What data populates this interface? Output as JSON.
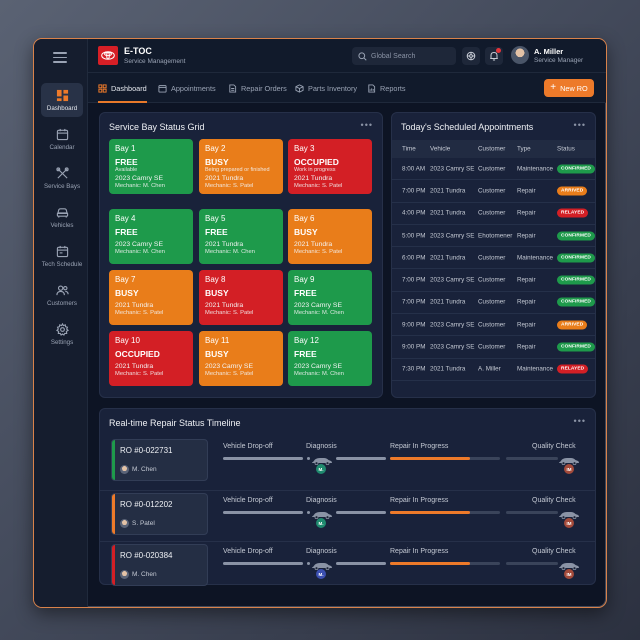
{
  "app": {
    "title": "E-TOC",
    "subtitle": "Service Management"
  },
  "header": {
    "search_placeholder": "Global Search",
    "notification_count": "",
    "user": {
      "name": "A. Miller",
      "role": "Service Manager"
    }
  },
  "sidebar": {
    "items": [
      {
        "label": "Dashboard",
        "icon": "dashboard-icon",
        "active": true
      },
      {
        "label": "Calendar",
        "icon": "calendar-icon"
      },
      {
        "label": "Service Bays",
        "icon": "tools-icon"
      },
      {
        "label": "Vehicles",
        "icon": "car-icon"
      },
      {
        "label": "Tech Schedule",
        "icon": "schedule-icon"
      },
      {
        "label": "Customers",
        "icon": "users-icon"
      },
      {
        "label": "Settings",
        "icon": "gear-icon"
      }
    ]
  },
  "tabs": [
    {
      "label": "Dashboard",
      "icon": "dashboard-icon",
      "active": true
    },
    {
      "label": "Appointments",
      "icon": "calendar-icon"
    },
    {
      "label": "Repair Orders",
      "icon": "document-icon"
    },
    {
      "label": "Parts Inventory",
      "icon": "parts-icon"
    },
    {
      "label": "Reports",
      "icon": "report-icon"
    }
  ],
  "new_ro_label": "New RO",
  "colors": {
    "accent": "#ed7a2a",
    "free": "#1e9a4b",
    "busy": "#e97d1a",
    "occupied": "#d31f25"
  },
  "bay_grid": {
    "title": "Service Bay Status Grid",
    "bays": [
      {
        "name": "Bay 1",
        "status": "FREE",
        "sub": "Available",
        "vehicle": "2023 Camry SE",
        "mechanic": "Mechanic: M. Chen",
        "color": "free"
      },
      {
        "name": "Bay 2",
        "status": "BUSY",
        "sub": "Being prepared or finished",
        "vehicle": "2021 Tundra",
        "mechanic": "Mechanic: S. Patel",
        "color": "busy"
      },
      {
        "name": "Bay 3",
        "status": "OCCUPIED",
        "sub": "Work in progress",
        "vehicle": "2021 Tundra",
        "mechanic": "Mechanic: S. Patel",
        "color": "occupied"
      },
      {
        "name": "Bay 4",
        "status": "FREE",
        "sub": "",
        "vehicle": "2023 Camry SE",
        "mechanic": "Mechanic: M. Chen",
        "color": "free"
      },
      {
        "name": "Bay 5",
        "status": "FREE",
        "sub": "",
        "vehicle": "2021 Tundra",
        "mechanic": "Mechanic: M. Chen",
        "color": "free"
      },
      {
        "name": "Bay 6",
        "status": "BUSY",
        "sub": "",
        "vehicle": "2021 Tundra",
        "mechanic": "Mechanic: S. Patel",
        "color": "busy"
      },
      {
        "name": "Bay 7",
        "status": "BUSY",
        "sub": "",
        "vehicle": "2021 Tundra",
        "mechanic": "Mechanic: S. Patel",
        "color": "busy"
      },
      {
        "name": "Bay 8",
        "status": "BUSY",
        "sub": "",
        "vehicle": "2021 Tundra",
        "mechanic": "Mechanic: S. Patel",
        "color": "red"
      },
      {
        "name": "Bay 9",
        "status": "FREE",
        "sub": "",
        "vehicle": "2023 Camry SE",
        "mechanic": "Mechanic: M. Chen",
        "color": "free"
      },
      {
        "name": "Bay 10",
        "status": "OCCUPIED",
        "sub": "",
        "vehicle": "2021 Tundra",
        "mechanic": "Mechanic: S. Patel",
        "color": "occupied"
      },
      {
        "name": "Bay 11",
        "status": "BUSY",
        "sub": "",
        "vehicle": "2023 Camry SE",
        "mechanic": "Mechanic: S. Patel",
        "color": "busy"
      },
      {
        "name": "Bay 12",
        "status": "FREE",
        "sub": "",
        "vehicle": "2023 Camry SE",
        "mechanic": "Mechanic: M. Chen",
        "color": "free"
      }
    ]
  },
  "appointments": {
    "title": "Today's Scheduled Appointments",
    "columns": [
      "Time",
      "Vehicle",
      "Customer",
      "Type",
      "Status"
    ],
    "rows": [
      {
        "time": "8:00 AM",
        "vehicle": "2023 Camry SE",
        "customer": "Customer",
        "type": "Maintenance",
        "status": "CONFIRMED"
      },
      {
        "time": "7:00 PM",
        "vehicle": "2021 Tundra",
        "customer": "Customer",
        "type": "Repair",
        "status": "ARRIVED"
      },
      {
        "time": "4:00 PM",
        "vehicle": "2021 Tundra",
        "customer": "Customer",
        "type": "Repair",
        "status": "RELAYED"
      },
      {
        "time": "5:00 PM",
        "vehicle": "2023 Camry SE",
        "customer": "Ehotomener",
        "type": "Repair",
        "status": "CONFIRMED"
      },
      {
        "time": "6:00 PM",
        "vehicle": "2021 Tundra",
        "customer": "Customer",
        "type": "Maintenance",
        "status": "CONFIRMED"
      },
      {
        "time": "7:00 PM",
        "vehicle": "2023 Camry SE",
        "customer": "Customer",
        "type": "Repair",
        "status": "CONFIRMED"
      },
      {
        "time": "7:00 PM",
        "vehicle": "2021 Tundra",
        "customer": "Customer",
        "type": "Repair",
        "status": "CONFIRMED"
      },
      {
        "time": "9:00 PM",
        "vehicle": "2023 Camry SE",
        "customer": "Customer",
        "type": "Repair",
        "status": "ARRIVED"
      },
      {
        "time": "9:00 PM",
        "vehicle": "2023 Camry SE",
        "customer": "Customer",
        "type": "Repair",
        "status": "CONFIRMED"
      },
      {
        "time": "7:30 PM",
        "vehicle": "2021 Tundra",
        "customer": "A. Miller",
        "type": "Maintenance",
        "status": "RELAYED"
      }
    ]
  },
  "timeline": {
    "title": "Real-time Repair Status Timeline",
    "stages": [
      "Vehicle Drop-off",
      "Diagnosis",
      "Repair In Progress",
      "Quality Check"
    ],
    "orders": [
      {
        "id": "RO #0-022731",
        "mechanic": "M. Chen",
        "accent": "#1e9a4b",
        "diag_avatar": "M.",
        "diag_color": "#1f8a6e",
        "qc_avatar": "IM",
        "repair_progress": 0.73
      },
      {
        "id": "RO #0-012202",
        "mechanic": "S. Patel",
        "accent": "#ed7a2a",
        "diag_avatar": "M.",
        "diag_color": "#1f8a6e",
        "qc_avatar": "IM",
        "repair_progress": 0.73
      },
      {
        "id": "RO #0-020384",
        "mechanic": "M. Chen",
        "accent": "#d31f25",
        "diag_avatar": "M.",
        "diag_color": "#3b4fb0",
        "qc_avatar": "IM",
        "repair_progress": 0.73
      }
    ]
  }
}
